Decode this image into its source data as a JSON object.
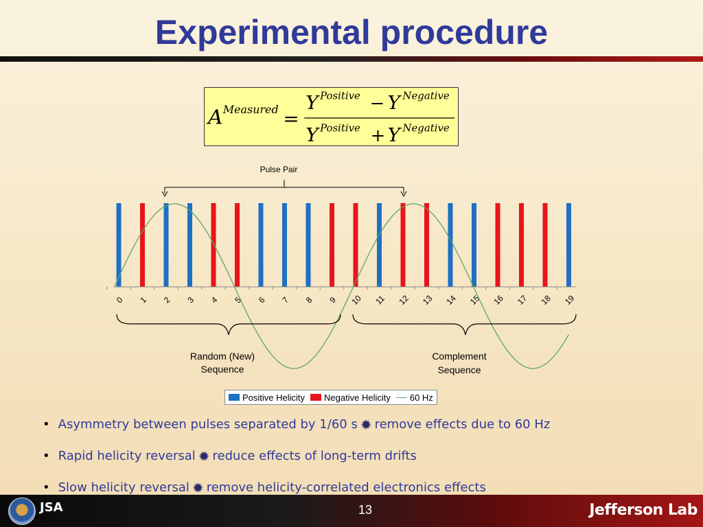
{
  "title": "Experimental procedure",
  "formula": {
    "lhs_symbol": "A",
    "lhs_superscript": "Measured",
    "equals": "=",
    "num_symbol_1": "Y",
    "num_sup_1": "Positive",
    "num_operator": "−",
    "num_symbol_2": "Y",
    "num_sup_2": "Negative",
    "den_symbol_1": "Y",
    "den_sup_1": "Positive",
    "den_operator": "+",
    "den_symbol_2": "Y",
    "den_sup_2": "Negative"
  },
  "chart_data": {
    "type": "bar",
    "categories": [
      "0",
      "1",
      "2",
      "3",
      "4",
      "5",
      "6",
      "7",
      "8",
      "9",
      "10",
      "11",
      "12",
      "13",
      "14",
      "15",
      "16",
      "17",
      "18",
      "19"
    ],
    "series": [
      {
        "name": "Positive Helicity",
        "color": "#1f6fc4",
        "values": [
          1,
          0,
          1,
          1,
          0,
          0,
          1,
          1,
          1,
          0,
          0,
          1,
          0,
          0,
          1,
          1,
          0,
          0,
          0,
          1
        ]
      },
      {
        "name": "Negative Helicity",
        "color": "#e8141c",
        "values": [
          0,
          1,
          0,
          0,
          1,
          1,
          0,
          0,
          0,
          1,
          1,
          0,
          1,
          1,
          0,
          0,
          1,
          1,
          1,
          0
        ]
      },
      {
        "name": "60 Hz",
        "type": "line",
        "color": "#5aa864",
        "period_pulses": 10,
        "amplitude": 1
      }
    ],
    "annotations": {
      "pulse_pair": "Pulse Pair",
      "random_sequence": [
        "Random (New)",
        "Sequence"
      ],
      "complement_sequence": [
        "Complement",
        "Sequence"
      ]
    },
    "legend_position": "bottom"
  },
  "legend": {
    "positive": "Positive Helicity",
    "negative": "Negative Helicity",
    "hz": "60 Hz"
  },
  "bullets": [
    {
      "before": "Asymmetry between pulses separated by 1/60 s",
      "after": "remove effects due to 60 Hz",
      "icon": "burst-icon"
    },
    {
      "before": "Rapid helicity reversal ",
      "after": " reduce effects of long-term drifts",
      "icon": "burst-icon"
    },
    {
      "before": "Slow helicity reversal ",
      "after": " remove helicity-correlated electronics effects",
      "icon": "burst-icon"
    }
  ],
  "bullet_marker": "•",
  "burst_glyph": "✹",
  "footer": {
    "page_number": "13",
    "jlab_logo_text": "Jefferson Lab",
    "jsa_logo_text": "JSA"
  }
}
